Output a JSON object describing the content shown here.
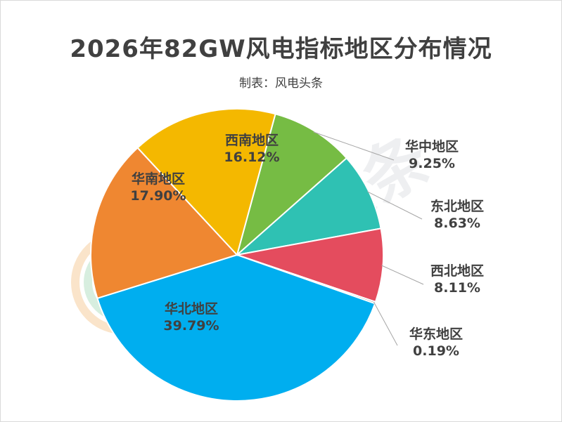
{
  "title": "2026年82GW风电指标地区分布情况",
  "subtitle": "制表：风电头条",
  "watermark": "风电头条",
  "colors": {
    "华中地区": "#76bc44",
    "东北地区": "#2fc1b3",
    "西北地区": "#e44c5e",
    "华东地区": "#7f7f7f",
    "华北地区": "#00aeef",
    "华南地区": "#ef8731",
    "西南地区": "#f4b800"
  },
  "chart_data": {
    "type": "pie",
    "title": "2026年82GW风电指标地区分布情况",
    "slices": [
      {
        "name": "华中地区",
        "value": 9.25,
        "label": "9.25%"
      },
      {
        "name": "东北地区",
        "value": 8.63,
        "label": "8.63%"
      },
      {
        "name": "西北地区",
        "value": 8.11,
        "label": "8.11%"
      },
      {
        "name": "华东地区",
        "value": 0.19,
        "label": "0.19%"
      },
      {
        "name": "华北地区",
        "value": 39.79,
        "label": "39.79%"
      },
      {
        "name": "华南地区",
        "value": 17.9,
        "label": "17.90%"
      },
      {
        "name": "西南地区",
        "value": 16.12,
        "label": "16.12%"
      }
    ],
    "legend": "none",
    "data_labels": "category-and-percent"
  }
}
